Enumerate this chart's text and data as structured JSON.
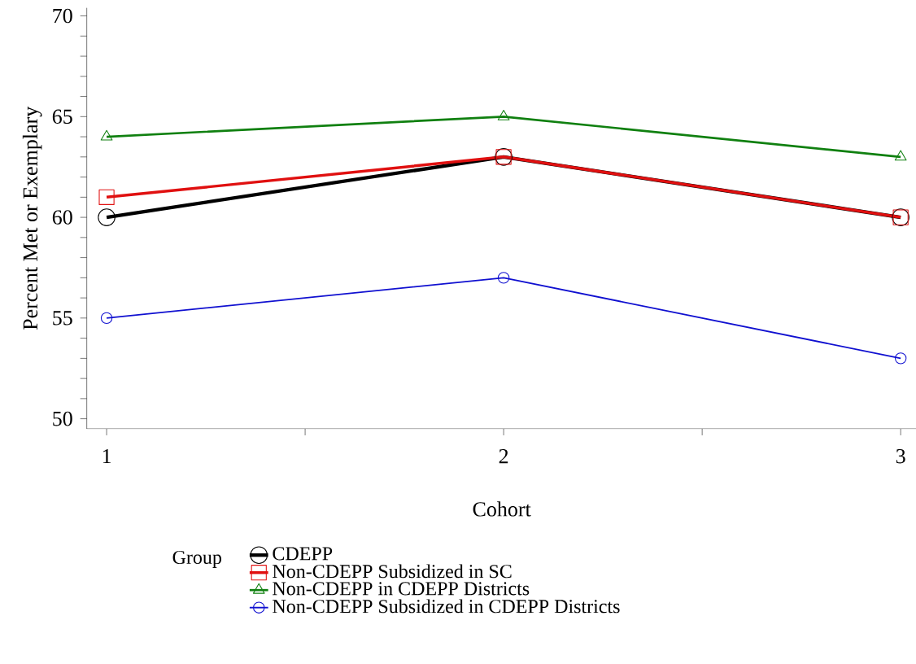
{
  "chart_data": {
    "type": "line",
    "xlabel": "Cohort",
    "ylabel": "Percent Met or Exemplary",
    "legend_title": "Group",
    "legend": "bottom",
    "x": [
      1,
      2,
      3
    ],
    "xlim": [
      0.95,
      3.04
    ],
    "ylim": [
      49.5,
      70.4
    ],
    "xticks": [
      1,
      {
        "value": 1.5,
        "label": null
      },
      2,
      {
        "value": 2.5,
        "label": null
      },
      3
    ],
    "yticks": [
      50,
      {
        "value": 51,
        "label": null
      },
      {
        "value": 52,
        "label": null
      },
      {
        "value": 53,
        "label": null
      },
      {
        "value": 54,
        "label": null
      },
      55,
      {
        "value": 56,
        "label": null
      },
      {
        "value": 57,
        "label": null
      },
      {
        "value": 58,
        "label": null
      },
      {
        "value": 59,
        "label": null
      },
      60,
      {
        "value": 61,
        "label": null
      },
      {
        "value": 62,
        "label": null
      },
      {
        "value": 63,
        "label": null
      },
      {
        "value": 64,
        "label": null
      },
      65,
      {
        "value": 66,
        "label": null
      },
      {
        "value": 67,
        "label": null
      },
      {
        "value": 68,
        "label": null
      },
      {
        "value": 69,
        "label": null
      },
      70
    ],
    "grid": false,
    "line_style": "solid",
    "series": [
      {
        "name": "CDEPP",
        "color": "#000000",
        "marker": "circle",
        "values": [
          60,
          63,
          60
        ]
      },
      {
        "name": "Non-CDEPP Subsidized in SC",
        "color": "#e01010",
        "marker": "square",
        "values": [
          61,
          63,
          60
        ]
      },
      {
        "name": "Non-CDEPP in CDEPP Districts",
        "color": "#108010",
        "marker": "triangle",
        "values": [
          64,
          65,
          63
        ]
      },
      {
        "name": "Non-CDEPP Subsidized in CDEPP Districts",
        "color": "#1010d0",
        "marker": "circle",
        "values": [
          55,
          57,
          53
        ]
      }
    ]
  }
}
